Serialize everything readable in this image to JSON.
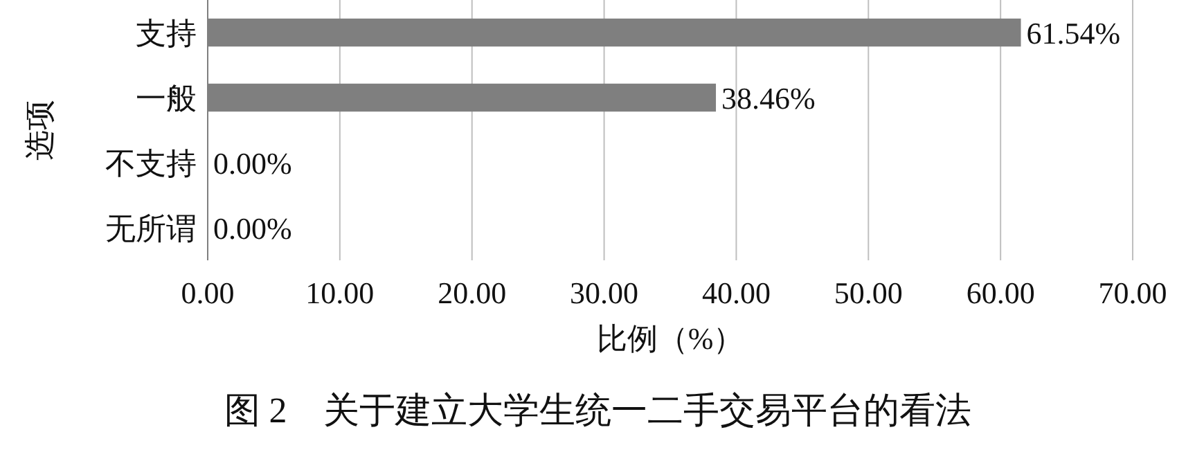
{
  "chart_data": {
    "type": "bar",
    "orientation": "horizontal",
    "title": "图 2　关于建立大学生统一二手交易平台的看法",
    "xlabel": "比例（%）",
    "ylabel": "选项",
    "categories": [
      "支持",
      "一般",
      "不支持",
      "无所谓"
    ],
    "values": [
      61.54,
      38.46,
      0,
      0
    ],
    "value_labels": [
      "61.54%",
      "38.46%",
      "0.00%",
      "0.00%"
    ],
    "color": "#7f7f7f",
    "xlim": [
      0,
      70
    ],
    "xticks": [
      {
        "value": 0,
        "label": "0.00"
      },
      {
        "value": 10,
        "label": "10.00"
      },
      {
        "value": 20,
        "label": "20.00"
      },
      {
        "value": 30,
        "label": "30.00"
      },
      {
        "value": 40,
        "label": "40.00"
      },
      {
        "value": 50,
        "label": "50.00"
      },
      {
        "value": 60,
        "label": "60.00"
      },
      {
        "value": 70,
        "label": "70.00"
      }
    ],
    "grid": "x"
  }
}
